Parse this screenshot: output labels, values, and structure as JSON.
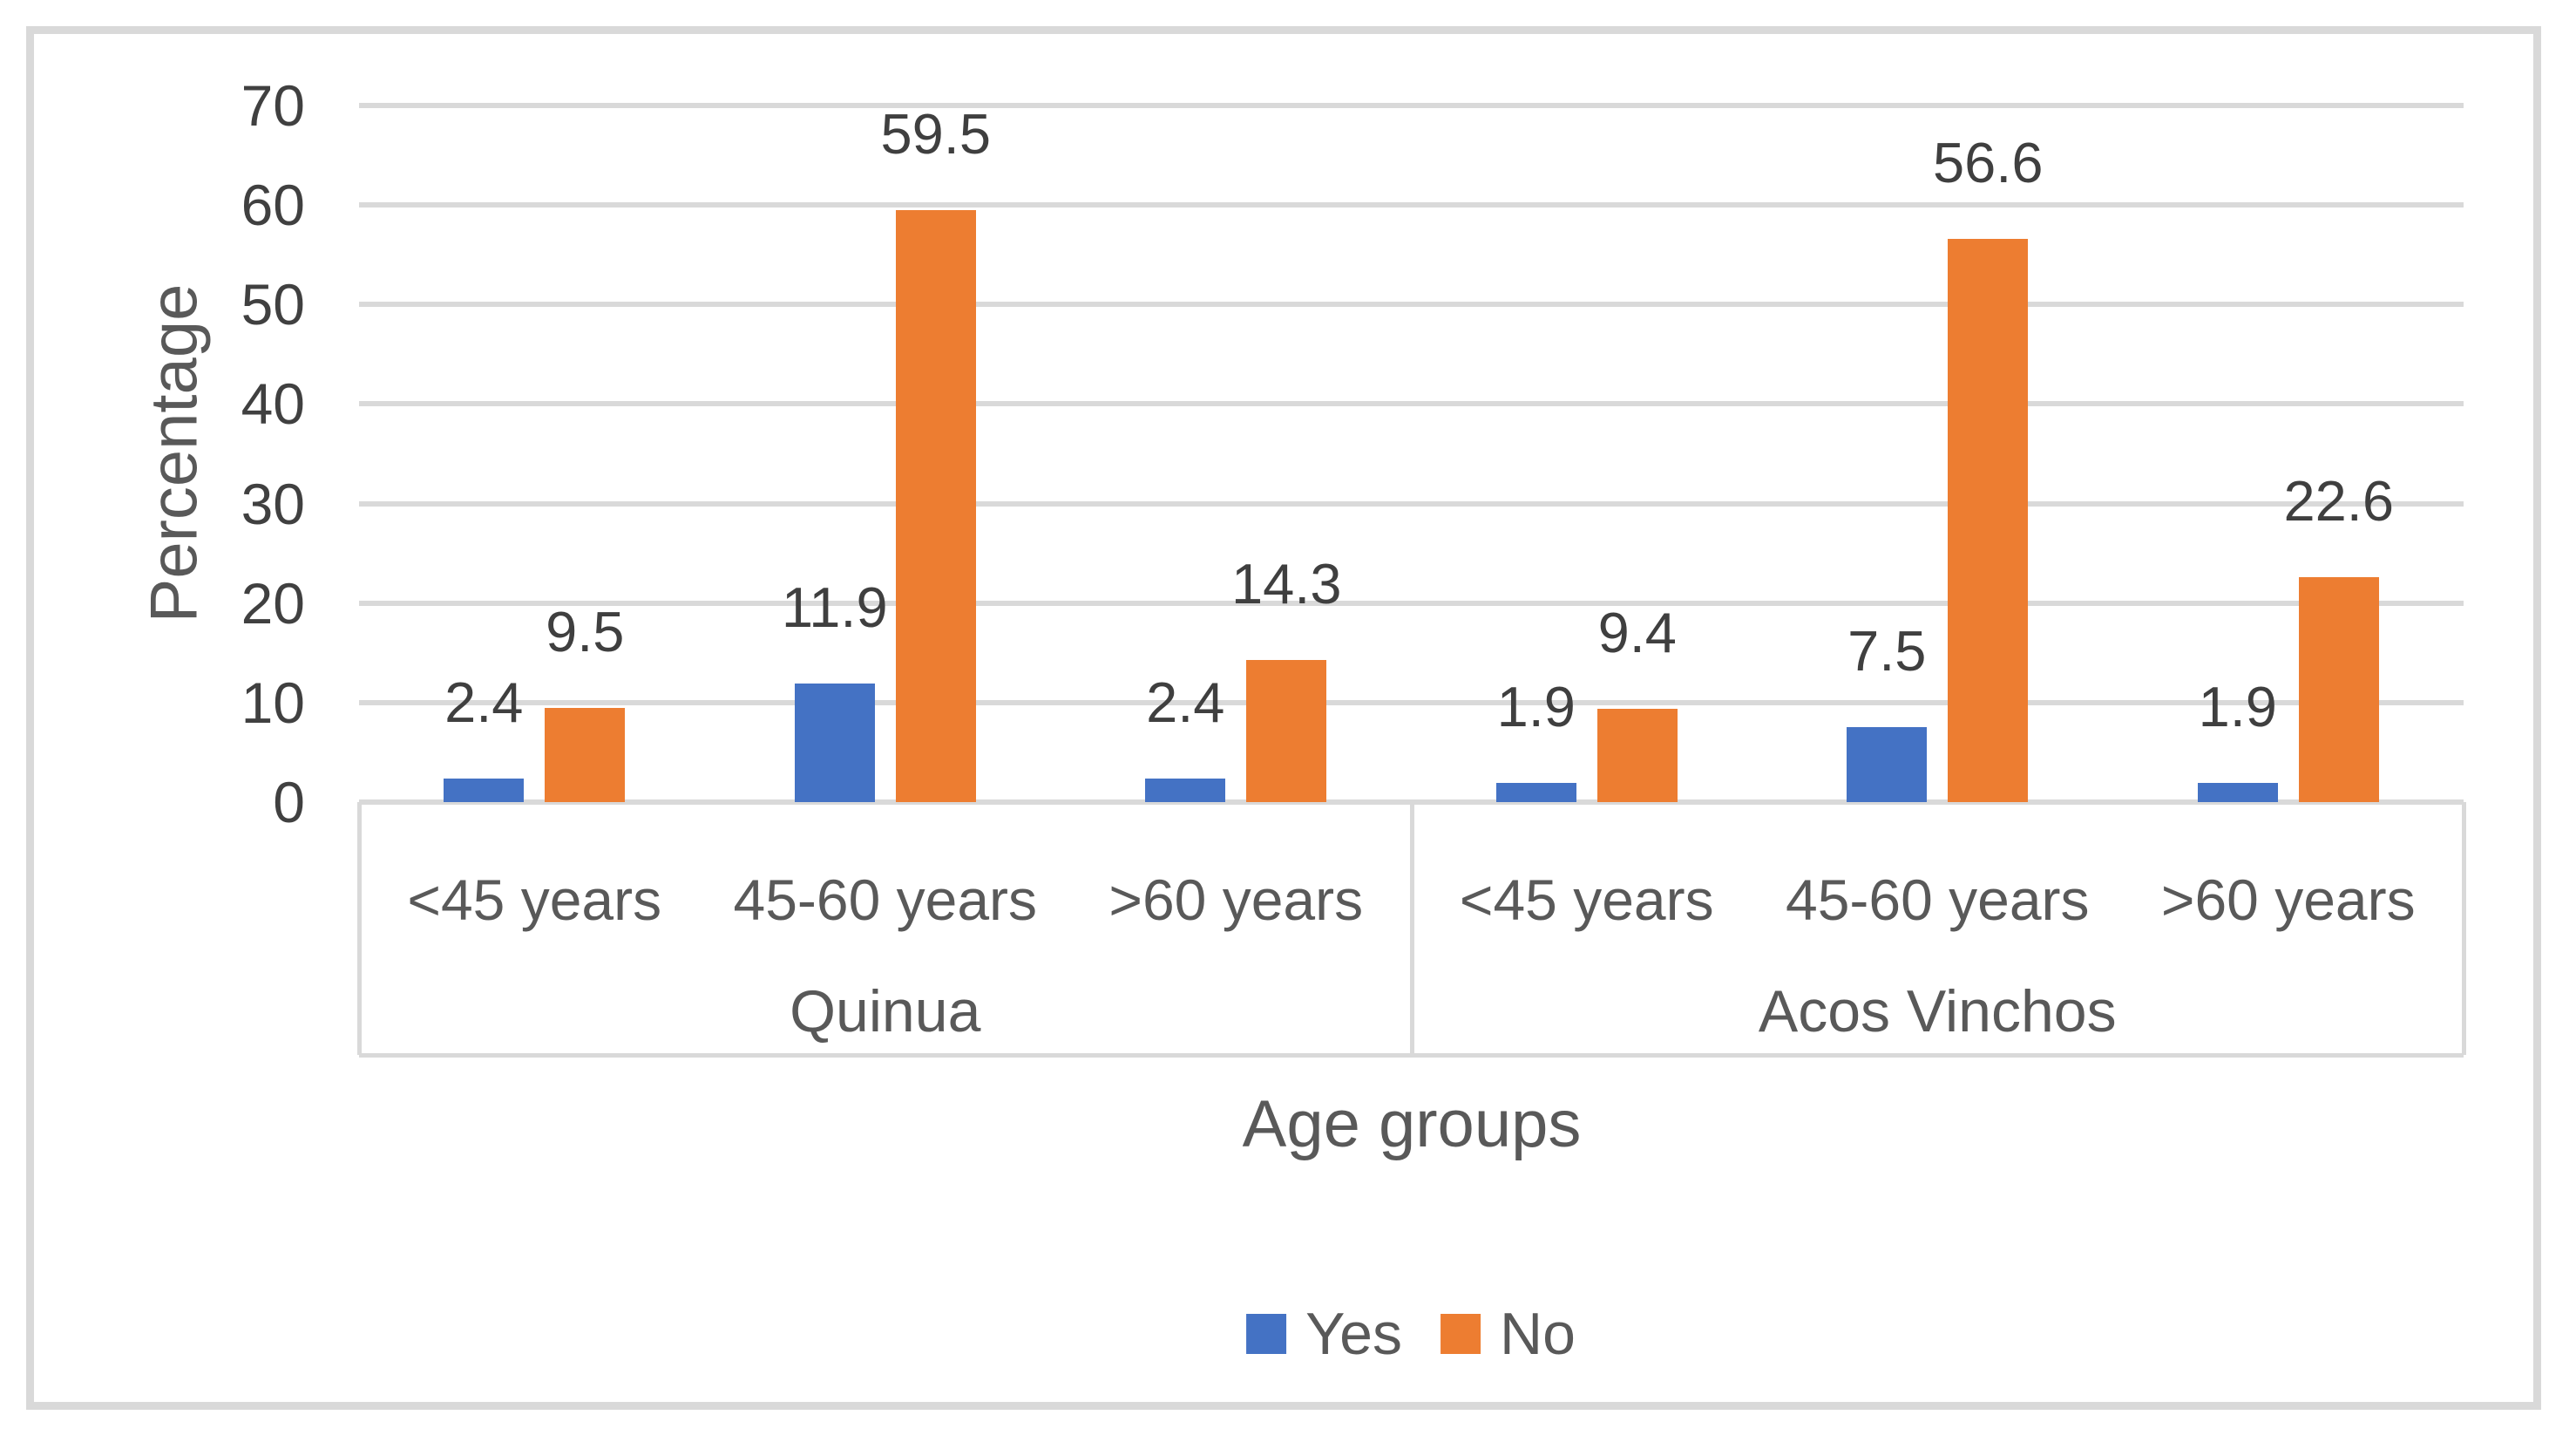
{
  "chart_data": {
    "type": "bar",
    "title": "",
    "xlabel": "Age groups",
    "ylabel": "Percentage",
    "ylim": [
      0,
      70
    ],
    "yticks": [
      0,
      10,
      20,
      30,
      40,
      50,
      60,
      70
    ],
    "grid": true,
    "legend_position": "bottom-center",
    "groups": [
      "Quinua",
      "Acos Vinchos"
    ],
    "categories": [
      "<45 years",
      "45-60 years",
      ">60 years"
    ],
    "series": [
      {
        "name": "Yes",
        "color": "#4472c4",
        "values": [
          [
            2.4,
            11.9,
            2.4
          ],
          [
            1.9,
            7.5,
            1.9
          ]
        ]
      },
      {
        "name": "No",
        "color": "#ed7d31",
        "values": [
          [
            9.5,
            59.5,
            14.3
          ],
          [
            9.4,
            56.6,
            22.6
          ]
        ]
      }
    ]
  },
  "colors": {
    "gridline": "#d9d9d9",
    "frame_border": "#d9d9d9",
    "text": "#404040",
    "series_yes": "#4472c4",
    "series_no": "#ed7d31"
  }
}
